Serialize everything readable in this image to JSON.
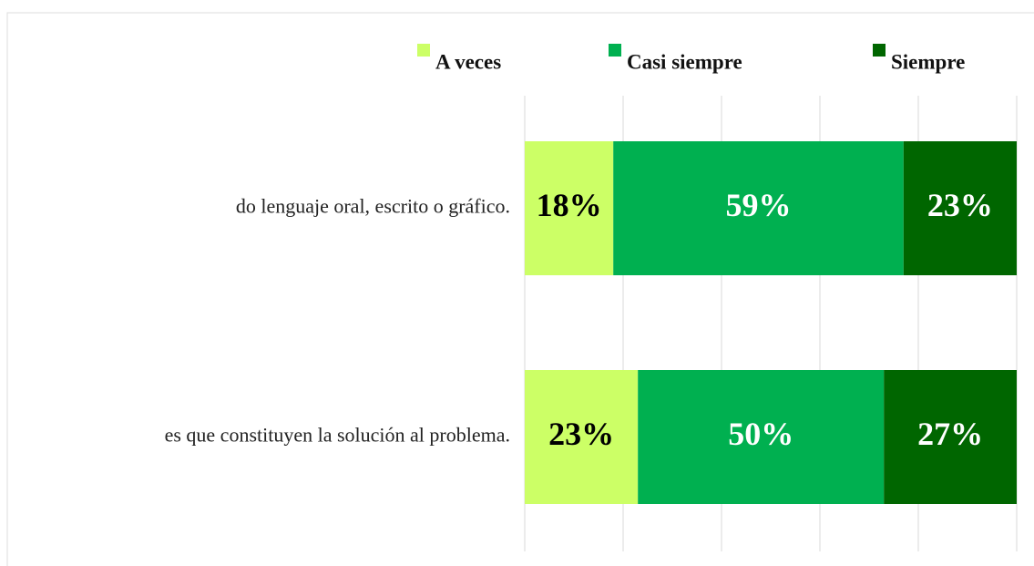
{
  "chart_data": {
    "type": "bar",
    "orientation": "horizontal",
    "stacked": true,
    "categories": [
      "do lenguaje oral, escrito o gráfico.",
      "es que constituyen la solución al problema."
    ],
    "series": [
      {
        "name": "A veces",
        "color": "#ccff66",
        "label_color": "#000000",
        "values": [
          18,
          23
        ],
        "value_labels": [
          "18%",
          "23%"
        ]
      },
      {
        "name": "Casi siempre",
        "color": "#00b050",
        "label_color": "#ffffff",
        "values": [
          59,
          50
        ],
        "value_labels": [
          "59%",
          "50%"
        ]
      },
      {
        "name": "Siempre",
        "color": "#006600",
        "label_color": "#ffffff",
        "values": [
          23,
          27
        ],
        "value_labels": [
          "23%",
          "27%"
        ]
      }
    ],
    "xlim": [
      0,
      100
    ],
    "xticks": [
      0,
      20,
      40,
      60,
      80,
      100
    ],
    "grid": true,
    "legend": "top"
  }
}
